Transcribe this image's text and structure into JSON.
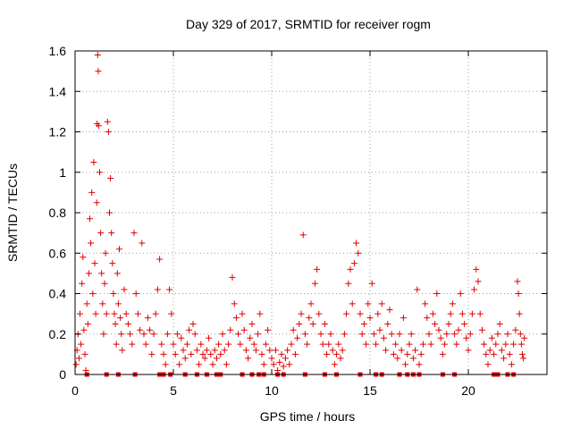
{
  "chart_data": {
    "type": "scatter",
    "title": "Day 329 of 2017, SRMTID for receiver rogm",
    "xlabel": "GPS time / hours",
    "ylabel": "SRMTID / TECUs",
    "xlim": [
      0,
      24
    ],
    "ylim": [
      0,
      1.6
    ],
    "x_ticks": [
      0,
      5,
      10,
      15,
      20
    ],
    "x_tick_labels": [
      "0",
      "5",
      "10",
      "15",
      "20"
    ],
    "y_ticks": [
      0,
      0.2,
      0.4,
      0.6,
      0.8,
      1,
      1.2,
      1.4,
      1.6
    ],
    "y_tick_labels": [
      "0",
      "0.2",
      "0.4",
      "0.6",
      "0.8",
      "1",
      "1.2",
      "1.4",
      "1.6"
    ],
    "grid": true,
    "marker": "+",
    "series": [
      {
        "name": "SRMTID",
        "color": "#e00000",
        "points": [
          [
            0.05,
            0.05
          ],
          [
            0.1,
            0.12
          ],
          [
            0.15,
            0.2
          ],
          [
            0.2,
            0.08
          ],
          [
            0.25,
            0.3
          ],
          [
            0.3,
            0.15
          ],
          [
            0.35,
            0.45
          ],
          [
            0.4,
            0.58
          ],
          [
            0.45,
            0.22
          ],
          [
            0.5,
            0.1
          ],
          [
            0.55,
            0.02
          ],
          [
            0.6,
            0.35
          ],
          [
            0.65,
            0.25
          ],
          [
            0.7,
            0.5
          ],
          [
            0.75,
            0.77
          ],
          [
            0.8,
            0.65
          ],
          [
            0.85,
            0.9
          ],
          [
            0.9,
            0.4
          ],
          [
            0.95,
            1.05
          ],
          [
            1.0,
            0.55
          ],
          [
            1.05,
            0.3
          ],
          [
            1.1,
            0.85
          ],
          [
            1.12,
            1.24
          ],
          [
            1.15,
            1.58
          ],
          [
            1.18,
            1.5
          ],
          [
            1.2,
            1.23
          ],
          [
            1.25,
            1.0
          ],
          [
            1.3,
            0.7
          ],
          [
            1.35,
            0.5
          ],
          [
            1.4,
            0.35
          ],
          [
            1.45,
            0.2
          ],
          [
            1.5,
            0.45
          ],
          [
            1.55,
            0.6
          ],
          [
            1.6,
            0.3
          ],
          [
            1.65,
            1.25
          ],
          [
            1.7,
            1.2
          ],
          [
            1.75,
            0.8
          ],
          [
            1.8,
            0.97
          ],
          [
            1.85,
            0.7
          ],
          [
            1.9,
            0.55
          ],
          [
            1.95,
            0.4
          ],
          [
            2.0,
            0.3
          ],
          [
            2.05,
            0.25
          ],
          [
            2.1,
            0.15
          ],
          [
            2.15,
            0.5
          ],
          [
            2.2,
            0.35
          ],
          [
            2.25,
            0.62
          ],
          [
            2.3,
            0.28
          ],
          [
            2.35,
            0.2
          ],
          [
            2.4,
            0.12
          ],
          [
            2.5,
            0.42
          ],
          [
            2.6,
            0.3
          ],
          [
            2.7,
            0.25
          ],
          [
            2.8,
            0.2
          ],
          [
            2.9,
            0.15
          ],
          [
            3.0,
            0.7
          ],
          [
            3.1,
            0.4
          ],
          [
            3.2,
            0.3
          ],
          [
            3.3,
            0.22
          ],
          [
            3.4,
            0.65
          ],
          [
            3.5,
            0.2
          ],
          [
            3.6,
            0.15
          ],
          [
            3.7,
            0.28
          ],
          [
            3.8,
            0.22
          ],
          [
            3.9,
            0.1
          ],
          [
            4.0,
            0.2
          ],
          [
            4.1,
            0.3
          ],
          [
            4.2,
            0.42
          ],
          [
            4.3,
            0.57
          ],
          [
            4.4,
            0.15
          ],
          [
            4.5,
            0.1
          ],
          [
            4.6,
            0.05
          ],
          [
            4.7,
            0.2
          ],
          [
            4.8,
            0.42
          ],
          [
            4.9,
            0.3
          ],
          [
            5.0,
            0.15
          ],
          [
            5.1,
            0.1
          ],
          [
            5.2,
            0.2
          ],
          [
            5.3,
            0.05
          ],
          [
            5.4,
            0.18
          ],
          [
            5.5,
            0.12
          ],
          [
            5.6,
            0.08
          ],
          [
            5.7,
            0.15
          ],
          [
            5.8,
            0.22
          ],
          [
            5.9,
            0.1
          ],
          [
            6.0,
            0.25
          ],
          [
            6.1,
            0.2
          ],
          [
            6.2,
            0.12
          ],
          [
            6.3,
            0.05
          ],
          [
            6.4,
            0.15
          ],
          [
            6.5,
            0.1
          ],
          [
            6.6,
            0.08
          ],
          [
            6.7,
            0.12
          ],
          [
            6.8,
            0.18
          ],
          [
            6.9,
            0.1
          ],
          [
            7.0,
            0.05
          ],
          [
            7.1,
            0.12
          ],
          [
            7.2,
            0.08
          ],
          [
            7.3,
            0.15
          ],
          [
            7.4,
            0.1
          ],
          [
            7.5,
            0.2
          ],
          [
            7.6,
            0.12
          ],
          [
            7.7,
            0.05
          ],
          [
            7.8,
            0.15
          ],
          [
            7.9,
            0.22
          ],
          [
            8.0,
            0.48
          ],
          [
            8.1,
            0.35
          ],
          [
            8.2,
            0.28
          ],
          [
            8.3,
            0.2
          ],
          [
            8.4,
            0.15
          ],
          [
            8.5,
            0.3
          ],
          [
            8.6,
            0.22
          ],
          [
            8.7,
            0.12
          ],
          [
            8.8,
            0.08
          ],
          [
            8.9,
            0.18
          ],
          [
            9.0,
            0.25
          ],
          [
            9.1,
            0.15
          ],
          [
            9.2,
            0.12
          ],
          [
            9.3,
            0.2
          ],
          [
            9.4,
            0.3
          ],
          [
            9.5,
            0.1
          ],
          [
            9.6,
            0.05
          ],
          [
            9.7,
            0.15
          ],
          [
            9.8,
            0.22
          ],
          [
            9.9,
            0.12
          ],
          [
            10.0,
            0.08
          ],
          [
            10.1,
            0.05
          ],
          [
            10.2,
            0.12
          ],
          [
            10.3,
            0.02
          ],
          [
            10.4,
            0.06
          ],
          [
            10.5,
            0.1
          ],
          [
            10.6,
            0.04
          ],
          [
            10.7,
            0.08
          ],
          [
            10.8,
            0.12
          ],
          [
            10.9,
            0.05
          ],
          [
            11.0,
            0.15
          ],
          [
            11.1,
            0.22
          ],
          [
            11.2,
            0.1
          ],
          [
            11.3,
            0.18
          ],
          [
            11.4,
            0.25
          ],
          [
            11.5,
            0.3
          ],
          [
            11.6,
            0.69
          ],
          [
            11.7,
            0.2
          ],
          [
            11.8,
            0.15
          ],
          [
            11.9,
            0.28
          ],
          [
            12.0,
            0.35
          ],
          [
            12.1,
            0.25
          ],
          [
            12.2,
            0.45
          ],
          [
            12.3,
            0.52
          ],
          [
            12.4,
            0.3
          ],
          [
            12.5,
            0.2
          ],
          [
            12.6,
            0.15
          ],
          [
            12.7,
            0.25
          ],
          [
            12.8,
            0.1
          ],
          [
            12.9,
            0.15
          ],
          [
            13.0,
            0.2
          ],
          [
            13.1,
            0.12
          ],
          [
            13.2,
            0.05
          ],
          [
            13.3,
            0.1
          ],
          [
            13.4,
            0.15
          ],
          [
            13.5,
            0.08
          ],
          [
            13.6,
            0.12
          ],
          [
            13.7,
            0.2
          ],
          [
            13.8,
            0.3
          ],
          [
            13.9,
            0.45
          ],
          [
            14.0,
            0.52
          ],
          [
            14.1,
            0.35
          ],
          [
            14.2,
            0.55
          ],
          [
            14.3,
            0.65
          ],
          [
            14.4,
            0.6
          ],
          [
            14.5,
            0.3
          ],
          [
            14.6,
            0.2
          ],
          [
            14.7,
            0.25
          ],
          [
            14.8,
            0.15
          ],
          [
            14.9,
            0.35
          ],
          [
            15.0,
            0.28
          ],
          [
            15.1,
            0.45
          ],
          [
            15.2,
            0.2
          ],
          [
            15.3,
            0.15
          ],
          [
            15.4,
            0.3
          ],
          [
            15.5,
            0.22
          ],
          [
            15.6,
            0.35
          ],
          [
            15.7,
            0.18
          ],
          [
            15.8,
            0.12
          ],
          [
            15.9,
            0.25
          ],
          [
            16.0,
            0.32
          ],
          [
            16.1,
            0.2
          ],
          [
            16.2,
            0.1
          ],
          [
            16.3,
            0.15
          ],
          [
            16.4,
            0.08
          ],
          [
            16.5,
            0.2
          ],
          [
            16.6,
            0.12
          ],
          [
            16.7,
            0.28
          ],
          [
            16.8,
            0.05
          ],
          [
            16.9,
            0.1
          ],
          [
            17.0,
            0.15
          ],
          [
            17.1,
            0.2
          ],
          [
            17.2,
            0.08
          ],
          [
            17.3,
            0.12
          ],
          [
            17.4,
            0.42
          ],
          [
            17.5,
            0.05
          ],
          [
            17.6,
            0.1
          ],
          [
            17.7,
            0.15
          ],
          [
            17.8,
            0.35
          ],
          [
            17.9,
            0.28
          ],
          [
            18.0,
            0.2
          ],
          [
            18.1,
            0.15
          ],
          [
            18.2,
            0.3
          ],
          [
            18.3,
            0.25
          ],
          [
            18.4,
            0.4
          ],
          [
            18.5,
            0.22
          ],
          [
            18.6,
            0.18
          ],
          [
            18.7,
            0.1
          ],
          [
            18.8,
            0.15
          ],
          [
            18.9,
            0.2
          ],
          [
            19.0,
            0.25
          ],
          [
            19.1,
            0.3
          ],
          [
            19.2,
            0.35
          ],
          [
            19.3,
            0.2
          ],
          [
            19.4,
            0.15
          ],
          [
            19.5,
            0.22
          ],
          [
            19.6,
            0.4
          ],
          [
            19.7,
            0.3
          ],
          [
            19.8,
            0.25
          ],
          [
            19.9,
            0.18
          ],
          [
            20.0,
            0.12
          ],
          [
            20.1,
            0.2
          ],
          [
            20.2,
            0.3
          ],
          [
            20.3,
            0.42
          ],
          [
            20.4,
            0.52
          ],
          [
            20.5,
            0.46
          ],
          [
            20.6,
            0.3
          ],
          [
            20.7,
            0.22
          ],
          [
            20.8,
            0.15
          ],
          [
            20.9,
            0.1
          ],
          [
            21.0,
            0.05
          ],
          [
            21.1,
            0.12
          ],
          [
            21.2,
            0.18
          ],
          [
            21.3,
            0.1
          ],
          [
            21.4,
            0.15
          ],
          [
            21.5,
            0.2
          ],
          [
            21.6,
            0.25
          ],
          [
            21.7,
            0.12
          ],
          [
            21.8,
            0.08
          ],
          [
            21.9,
            0.15
          ],
          [
            22.0,
            0.2
          ],
          [
            22.1,
            0.1
          ],
          [
            22.2,
            0.05
          ],
          [
            22.3,
            0.15
          ],
          [
            22.4,
            0.22
          ],
          [
            22.5,
            0.46
          ],
          [
            22.55,
            0.4
          ],
          [
            22.6,
            0.3
          ],
          [
            22.65,
            0.2
          ],
          [
            22.7,
            0.15
          ],
          [
            22.75,
            0.1
          ],
          [
            22.8,
            0.08
          ],
          [
            22.85,
            0.18
          ]
        ]
      }
    ],
    "zero_markers_x": [
      0.6,
      1.6,
      2.2,
      3.05,
      4.3,
      4.5,
      4.85,
      5.6,
      6.2,
      6.7,
      7.2,
      7.4,
      8.5,
      9.0,
      9.35,
      9.6,
      10.3,
      10.6,
      11.7,
      12.7,
      13.3,
      14.5,
      15.3,
      15.6,
      16.5,
      16.9,
      17.2,
      17.5,
      18.7,
      19.3,
      21.3,
      21.5,
      22.0,
      22.3
    ]
  }
}
